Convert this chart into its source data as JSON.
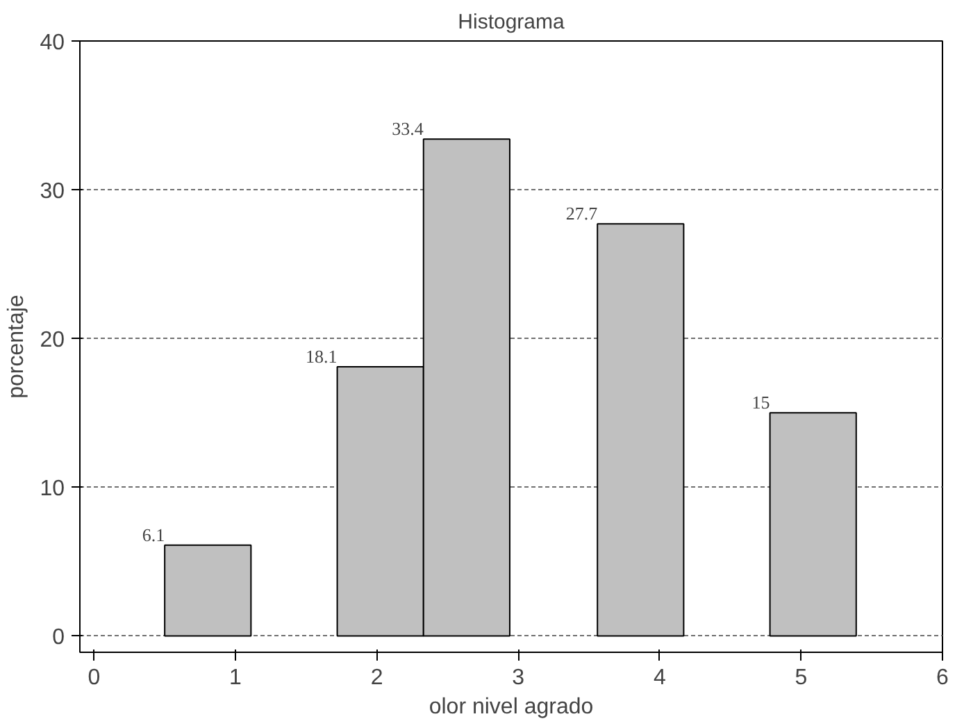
{
  "chart_data": {
    "type": "histogram",
    "title": "Histograma",
    "xlabel": "olor nivel agrado",
    "ylabel": "porcentaje",
    "bins": [
      0.5,
      1.11,
      1.72,
      2.33,
      2.94,
      3.56,
      4.17,
      4.78,
      5.39
    ],
    "values": [
      6.1,
      0,
      18.1,
      33.4,
      0,
      27.7,
      0,
      15
    ],
    "value_labels": [
      "6.1",
      null,
      "18.1",
      "33.4",
      null,
      "27.7",
      null,
      "15"
    ],
    "color": "#c0c0c0",
    "xlim": [
      -0.1,
      6
    ],
    "ylim": [
      -1.1,
      40
    ],
    "xticks": [
      0,
      1,
      2,
      3,
      4,
      5,
      6
    ],
    "yticks": [
      0,
      10,
      20,
      30,
      40
    ],
    "grid": "y"
  }
}
